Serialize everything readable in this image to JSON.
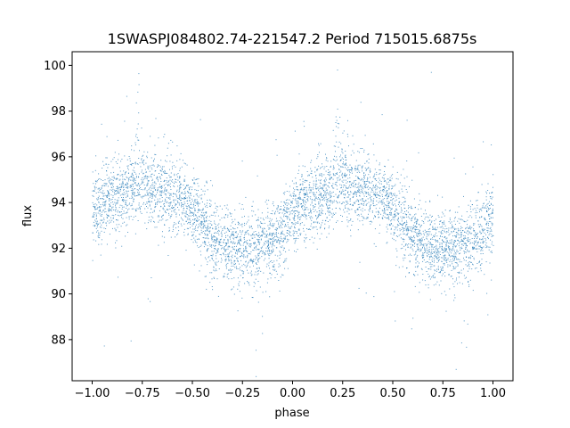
{
  "chart_data": {
    "type": "scatter",
    "title": "1SWASPJ084802.74-221547.2 Period 715015.6875s",
    "xlabel": "phase",
    "ylabel": "flux",
    "xlim": [
      -1.1,
      1.1
    ],
    "ylim": [
      86.2,
      100.6
    ],
    "xticks": [
      -1.0,
      -0.75,
      -0.5,
      -0.25,
      0.0,
      0.25,
      0.5,
      0.75,
      1.0
    ],
    "xtick_labels": [
      "−1.00",
      "−0.75",
      "−0.50",
      "−0.25",
      "0.00",
      "0.25",
      "0.50",
      "0.75",
      "1.00"
    ],
    "yticks": [
      88,
      90,
      92,
      94,
      96,
      98,
      100
    ],
    "ytick_labels": [
      "88",
      "90",
      "92",
      "94",
      "96",
      "98",
      "100"
    ],
    "grid": false,
    "legend": "none",
    "point_color": "#1f77b4",
    "phase_profile": {
      "phase": [
        0.0,
        0.05,
        0.1,
        0.15,
        0.2,
        0.25,
        0.3,
        0.35,
        0.4,
        0.45,
        0.5,
        0.55,
        0.6,
        0.65,
        0.7,
        0.75,
        0.8,
        0.85,
        0.9,
        0.95,
        1.0
      ],
      "flux": [
        93.6,
        94.0,
        94.2,
        94.4,
        94.6,
        94.8,
        94.6,
        94.5,
        94.4,
        94.2,
        93.8,
        93.0,
        92.4,
        92.2,
        92.0,
        92.0,
        92.1,
        92.2,
        92.4,
        92.8,
        93.6
      ],
      "scatter": 0.8,
      "spike_phase": 0.23,
      "spike_flux": 96.5
    }
  }
}
